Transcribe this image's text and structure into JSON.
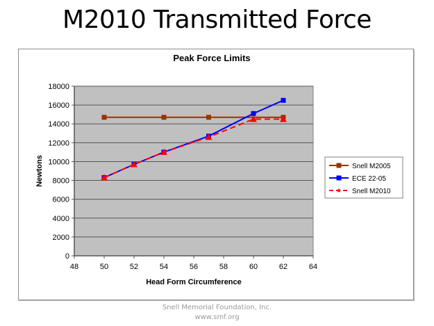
{
  "slide": {
    "title": "M2010 Transmitted Force",
    "footer_line1": "Snell Memorial Foundation, Inc.",
    "footer_line2": "www.smf.org"
  },
  "chart_data": {
    "type": "line",
    "title": "Peak Force Limits",
    "xlabel": "Head Form Circumference",
    "ylabel": "Newtons",
    "xlim": [
      48,
      64
    ],
    "ylim": [
      0,
      18000
    ],
    "x_ticks": [
      "48",
      "50",
      "52",
      "54",
      "56",
      "58",
      "60",
      "62",
      "64"
    ],
    "y_ticks": [
      "0",
      "2000",
      "4000",
      "6000",
      "8000",
      "10000",
      "12000",
      "14000",
      "16000",
      "18000"
    ],
    "grid": true,
    "legend_position": "right",
    "plot_background": "#c0c0c0",
    "series": [
      {
        "name": "Snell M2005",
        "color": "#993300",
        "marker": "square",
        "dash": "solid",
        "x": [
          50,
          54,
          57,
          62
        ],
        "y": [
          14700,
          14700,
          14700,
          14700
        ]
      },
      {
        "name": "ECE 22-05",
        "color": "#0000ff",
        "marker": "square",
        "dash": "solid",
        "x": [
          50,
          52,
          54,
          57,
          60,
          62
        ],
        "y": [
          8300,
          9700,
          11000,
          12700,
          15100,
          16500
        ]
      },
      {
        "name": "Snell M2010",
        "color": "#ff0000",
        "marker": "triangle",
        "dash": "dashed",
        "x": [
          50,
          52,
          54,
          57,
          60,
          62
        ],
        "y": [
          8300,
          9700,
          11000,
          12600,
          14500,
          14500
        ]
      }
    ]
  }
}
